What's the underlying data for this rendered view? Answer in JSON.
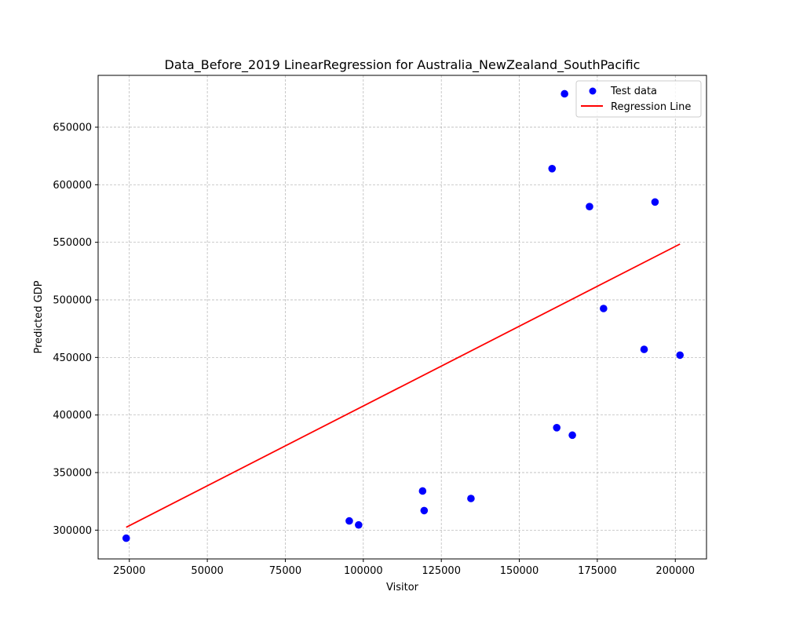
{
  "chart_data": {
    "type": "scatter",
    "title": "Data_Before_2019 LinearRegression for Australia_NewZealand_SouthPacific",
    "xlabel": "Visitor",
    "ylabel": "Predicted GDP",
    "xlim": [
      15000,
      210000
    ],
    "ylim": [
      275000,
      695000
    ],
    "xticks": [
      25000,
      50000,
      75000,
      100000,
      125000,
      150000,
      175000,
      200000
    ],
    "yticks": [
      300000,
      350000,
      400000,
      450000,
      500000,
      550000,
      600000,
      650000
    ],
    "grid": true,
    "legend_position": "top-right",
    "series": [
      {
        "name": "Test data",
        "kind": "scatter",
        "color": "#0000ff",
        "points": [
          {
            "x": 24000,
            "y": 293000
          },
          {
            "x": 95500,
            "y": 308000
          },
          {
            "x": 98500,
            "y": 304500
          },
          {
            "x": 119000,
            "y": 334000
          },
          {
            "x": 119500,
            "y": 317000
          },
          {
            "x": 134500,
            "y": 327500
          },
          {
            "x": 160500,
            "y": 614000
          },
          {
            "x": 162000,
            "y": 389000
          },
          {
            "x": 164500,
            "y": 679000
          },
          {
            "x": 167000,
            "y": 382500
          },
          {
            "x": 172500,
            "y": 581000
          },
          {
            "x": 177000,
            "y": 492500
          },
          {
            "x": 190000,
            "y": 457000
          },
          {
            "x": 193500,
            "y": 585000
          },
          {
            "x": 201500,
            "y": 452000
          }
        ]
      },
      {
        "name": "Regression Line",
        "kind": "line",
        "color": "#ff0000",
        "points": [
          {
            "x": 24000,
            "y": 302500
          },
          {
            "x": 201500,
            "y": 548500
          }
        ]
      }
    ]
  }
}
